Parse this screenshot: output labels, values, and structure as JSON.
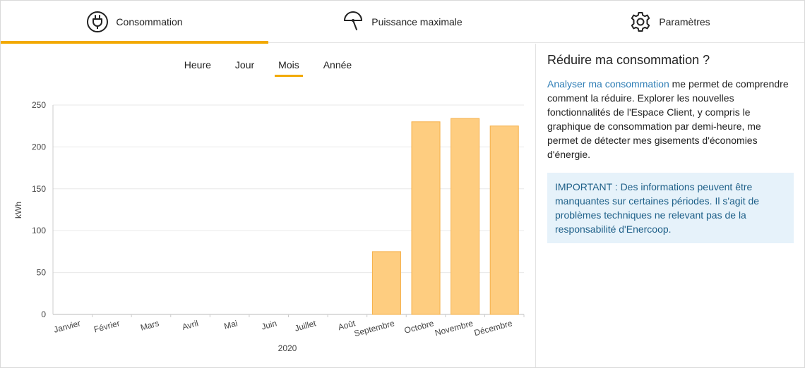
{
  "tabs": [
    {
      "label": "Consommation",
      "icon": "plug-icon",
      "active": true
    },
    {
      "label": "Puissance maximale",
      "icon": "gauge-icon",
      "active": false
    },
    {
      "label": "Paramètres",
      "icon": "gear-icon",
      "active": false
    }
  ],
  "subtabs": [
    {
      "label": "Heure",
      "active": false
    },
    {
      "label": "Jour",
      "active": false
    },
    {
      "label": "Mois",
      "active": true
    },
    {
      "label": "Année",
      "active": false
    }
  ],
  "colors": {
    "accent": "#f2a900",
    "bar_fill": "#fecd80",
    "bar_stroke": "#f5b04a",
    "link": "#2e7db5",
    "notice_bg": "#e6f2fa",
    "notice_text": "#1d5f88"
  },
  "chart_data": {
    "type": "bar",
    "categories": [
      "Janvier",
      "Février",
      "Mars",
      "Avril",
      "Mai",
      "Juin",
      "Juillet",
      "Août",
      "Septembre",
      "Octobre",
      "Novembre",
      "Décembre"
    ],
    "values": [
      0,
      0,
      0,
      0,
      0,
      0,
      0,
      0,
      75,
      230,
      234,
      225
    ],
    "xlabel": "2020",
    "ylabel": "kWh",
    "ylim": [
      0,
      250
    ],
    "yticks": [
      0,
      50,
      100,
      150,
      200,
      250
    ],
    "grid": true
  },
  "sidebar": {
    "title": "Réduire ma consommation ?",
    "link_text": "Analyser ma consommation",
    "body_text": " me permet de comprendre comment la réduire. Explorer les nouvelles fonctionnalités de l'Espace Client, y compris le graphique de consommation par demi-heure, me permet de détecter mes gisements d'économies d'énergie.",
    "notice": "IMPORTANT : Des informations peuvent être manquantes sur certaines périodes. Il s'agit de problèmes techniques ne relevant pas de la responsabilité d'Enercoop."
  }
}
